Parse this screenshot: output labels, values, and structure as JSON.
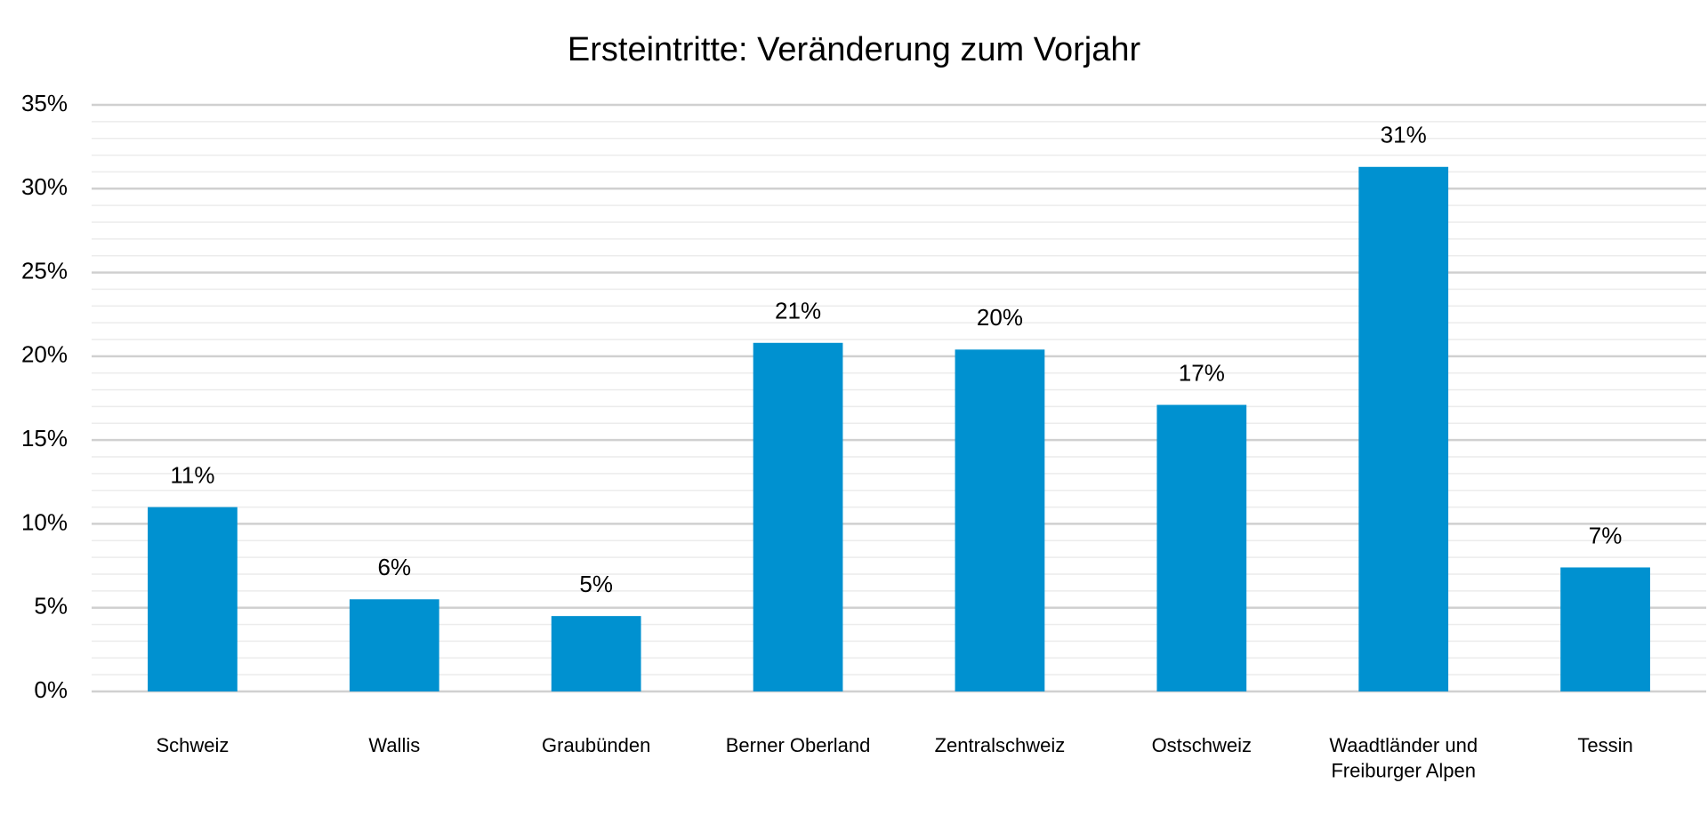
{
  "chart_data": {
    "type": "bar",
    "title": "Ersteintritte: Veränderung zum Vorjahr",
    "categories": [
      "Schweiz",
      "Wallis",
      "Graubünden",
      "Berner Oberland",
      "Zentralschweiz",
      "Ostschweiz",
      "Waadtländer und\nFreiburger Alpen",
      "Tessin"
    ],
    "values": [
      11.0,
      5.5,
      4.5,
      20.8,
      20.4,
      17.1,
      31.3,
      7.4
    ],
    "value_labels": [
      "11%",
      "6%",
      "5%",
      "21%",
      "20%",
      "17%",
      "31%",
      "7%"
    ],
    "color": "#0091d0",
    "ylim": [
      0,
      35
    ],
    "yticks": [
      {
        "value": 0,
        "label": "0%"
      },
      {
        "value": 5,
        "label": "5%"
      },
      {
        "value": 10,
        "label": "10%"
      },
      {
        "value": 15,
        "label": "15%"
      },
      {
        "value": 20,
        "label": "20%"
      },
      {
        "value": 25,
        "label": "25%"
      },
      {
        "value": 30,
        "label": "30%"
      },
      {
        "value": 35,
        "label": "35%"
      }
    ],
    "yminorticks": [
      1,
      2,
      3,
      4,
      6,
      7,
      8,
      9,
      11,
      12,
      13,
      14,
      16,
      17,
      18,
      19,
      21,
      22,
      23,
      24,
      26,
      27,
      28,
      29,
      31,
      32,
      33,
      34
    ],
    "grid": true
  }
}
